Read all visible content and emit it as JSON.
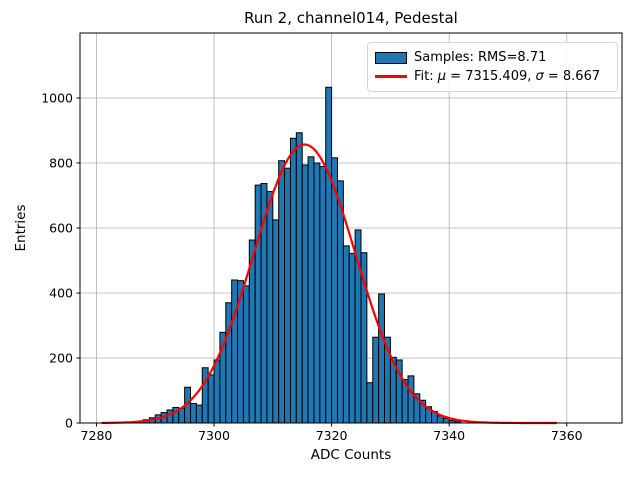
{
  "chart_data": {
    "type": "bar",
    "subtype": "histogram-with-gaussian-fit",
    "title": "Run 2, channel014, Pedestal",
    "xlabel": "ADC Counts",
    "ylabel": "Entries",
    "xlim": [
      7277.2,
      7369.4
    ],
    "ylim": [
      0,
      1200
    ],
    "x_ticks": [
      7280,
      7300,
      7320,
      7340,
      7360
    ],
    "y_ticks": [
      0,
      200,
      400,
      600,
      800,
      1000
    ],
    "grid": true,
    "grid_color": "#b0b0b0",
    "bar_color": "#1f77b4",
    "bar_edge_color": "#000000",
    "fit_color": "#ff0000",
    "bin_width": 1,
    "bin_start": 7286,
    "bin_counts": [
      3,
      6,
      10,
      16,
      25,
      32,
      40,
      48,
      45,
      110,
      60,
      55,
      170,
      148,
      194,
      279,
      370,
      440,
      438,
      422,
      563,
      732,
      737,
      712,
      625,
      807,
      784,
      876,
      893,
      794,
      819,
      800,
      789,
      1033,
      816,
      745,
      545,
      522,
      594,
      524,
      124,
      264,
      397,
      264,
      202,
      194,
      134,
      145,
      90,
      70,
      50,
      35,
      22,
      14,
      8,
      4
    ],
    "fit": {
      "mu": 7315.409,
      "sigma": 8.667,
      "amplitude": 857,
      "x_min": 7281.0,
      "x_max": 7358.5
    },
    "legend": {
      "position": "upper right",
      "samples_label": "Samples: RMS=8.71",
      "fit_prefix": "Fit: ",
      "fit_mu_symbol": "μ",
      "fit_mu_value": " = 7315.409, ",
      "fit_sigma_symbol": "σ",
      "fit_sigma_value": " = 8.667"
    }
  }
}
